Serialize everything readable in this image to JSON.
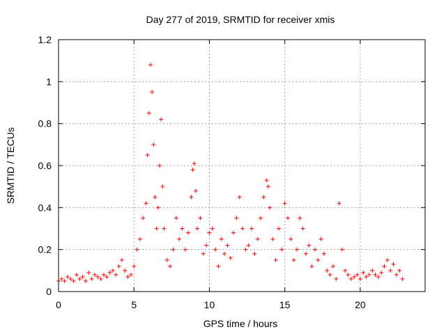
{
  "chart_data": {
    "type": "scatter",
    "title": "Day 277 of 2019, SRMTID for receiver xmis",
    "xlabel": "GPS time / hours",
    "ylabel": "SRMTID / TECUs",
    "xlim": [
      0,
      24.3
    ],
    "ylim": [
      0,
      1.2
    ],
    "x_ticks": [
      0,
      5,
      10,
      15,
      20
    ],
    "x_tick_labels": [
      "0",
      "5",
      "10",
      "15",
      "20"
    ],
    "y_ticks": [
      0,
      0.2,
      0.4,
      0.6,
      0.8,
      1.0,
      1.2
    ],
    "y_tick_labels": [
      "0",
      "0.2",
      "0.4",
      "0.6",
      "0.8",
      "1",
      "1.2"
    ],
    "grid": true,
    "marker": "plus",
    "series": [
      {
        "name": "SRMTID",
        "color": "#ff0000",
        "x": [
          0.0,
          0.2,
          0.4,
          0.6,
          0.8,
          1.0,
          1.2,
          1.4,
          1.6,
          1.8,
          2.0,
          2.2,
          2.4,
          2.6,
          2.8,
          3.0,
          3.2,
          3.4,
          3.6,
          3.8,
          4.0,
          4.2,
          4.4,
          4.6,
          4.8,
          5.0,
          5.2,
          5.4,
          5.6,
          5.8,
          5.9,
          6.0,
          6.1,
          6.2,
          6.3,
          6.4,
          6.5,
          6.6,
          6.7,
          6.8,
          6.9,
          7.0,
          7.2,
          7.4,
          7.6,
          7.8,
          8.0,
          8.2,
          8.4,
          8.6,
          8.8,
          8.9,
          9.0,
          9.1,
          9.2,
          9.4,
          9.6,
          9.8,
          10.0,
          10.2,
          10.4,
          10.6,
          10.8,
          11.0,
          11.2,
          11.4,
          11.6,
          11.8,
          12.0,
          12.2,
          12.4,
          12.6,
          12.8,
          13.0,
          13.2,
          13.4,
          13.6,
          13.8,
          13.9,
          14.0,
          14.2,
          14.4,
          14.6,
          14.8,
          15.0,
          15.2,
          15.4,
          15.6,
          15.8,
          16.0,
          16.2,
          16.4,
          16.6,
          16.8,
          17.0,
          17.2,
          17.4,
          17.6,
          17.8,
          18.0,
          18.2,
          18.4,
          18.6,
          18.8,
          19.0,
          19.2,
          19.4,
          19.6,
          19.8,
          20.0,
          20.2,
          20.4,
          20.6,
          20.8,
          21.0,
          21.2,
          21.4,
          21.6,
          21.8,
          22.0,
          22.2,
          22.4,
          22.6,
          22.8
        ],
        "y": [
          0.05,
          0.06,
          0.05,
          0.07,
          0.06,
          0.05,
          0.08,
          0.06,
          0.07,
          0.05,
          0.09,
          0.06,
          0.08,
          0.07,
          0.06,
          0.08,
          0.07,
          0.09,
          0.1,
          0.08,
          0.12,
          0.15,
          0.1,
          0.07,
          0.08,
          0.12,
          0.2,
          0.25,
          0.35,
          0.42,
          0.65,
          0.85,
          1.08,
          0.95,
          0.7,
          0.45,
          0.3,
          0.4,
          0.6,
          0.82,
          0.5,
          0.3,
          0.15,
          0.12,
          0.2,
          0.35,
          0.25,
          0.3,
          0.2,
          0.28,
          0.45,
          0.58,
          0.61,
          0.48,
          0.3,
          0.35,
          0.18,
          0.22,
          0.28,
          0.3,
          0.2,
          0.12,
          0.25,
          0.18,
          0.22,
          0.16,
          0.28,
          0.35,
          0.45,
          0.3,
          0.2,
          0.22,
          0.3,
          0.18,
          0.25,
          0.35,
          0.45,
          0.53,
          0.5,
          0.4,
          0.25,
          0.15,
          0.3,
          0.2,
          0.42,
          0.35,
          0.25,
          0.15,
          0.2,
          0.35,
          0.3,
          0.18,
          0.22,
          0.12,
          0.2,
          0.15,
          0.25,
          0.18,
          0.1,
          0.08,
          0.12,
          0.06,
          0.42,
          0.2,
          0.1,
          0.08,
          0.06,
          0.07,
          0.08,
          0.06,
          0.09,
          0.07,
          0.08,
          0.1,
          0.08,
          0.07,
          0.09,
          0.12,
          0.15,
          0.1,
          0.13,
          0.08,
          0.1,
          0.06
        ]
      }
    ]
  }
}
